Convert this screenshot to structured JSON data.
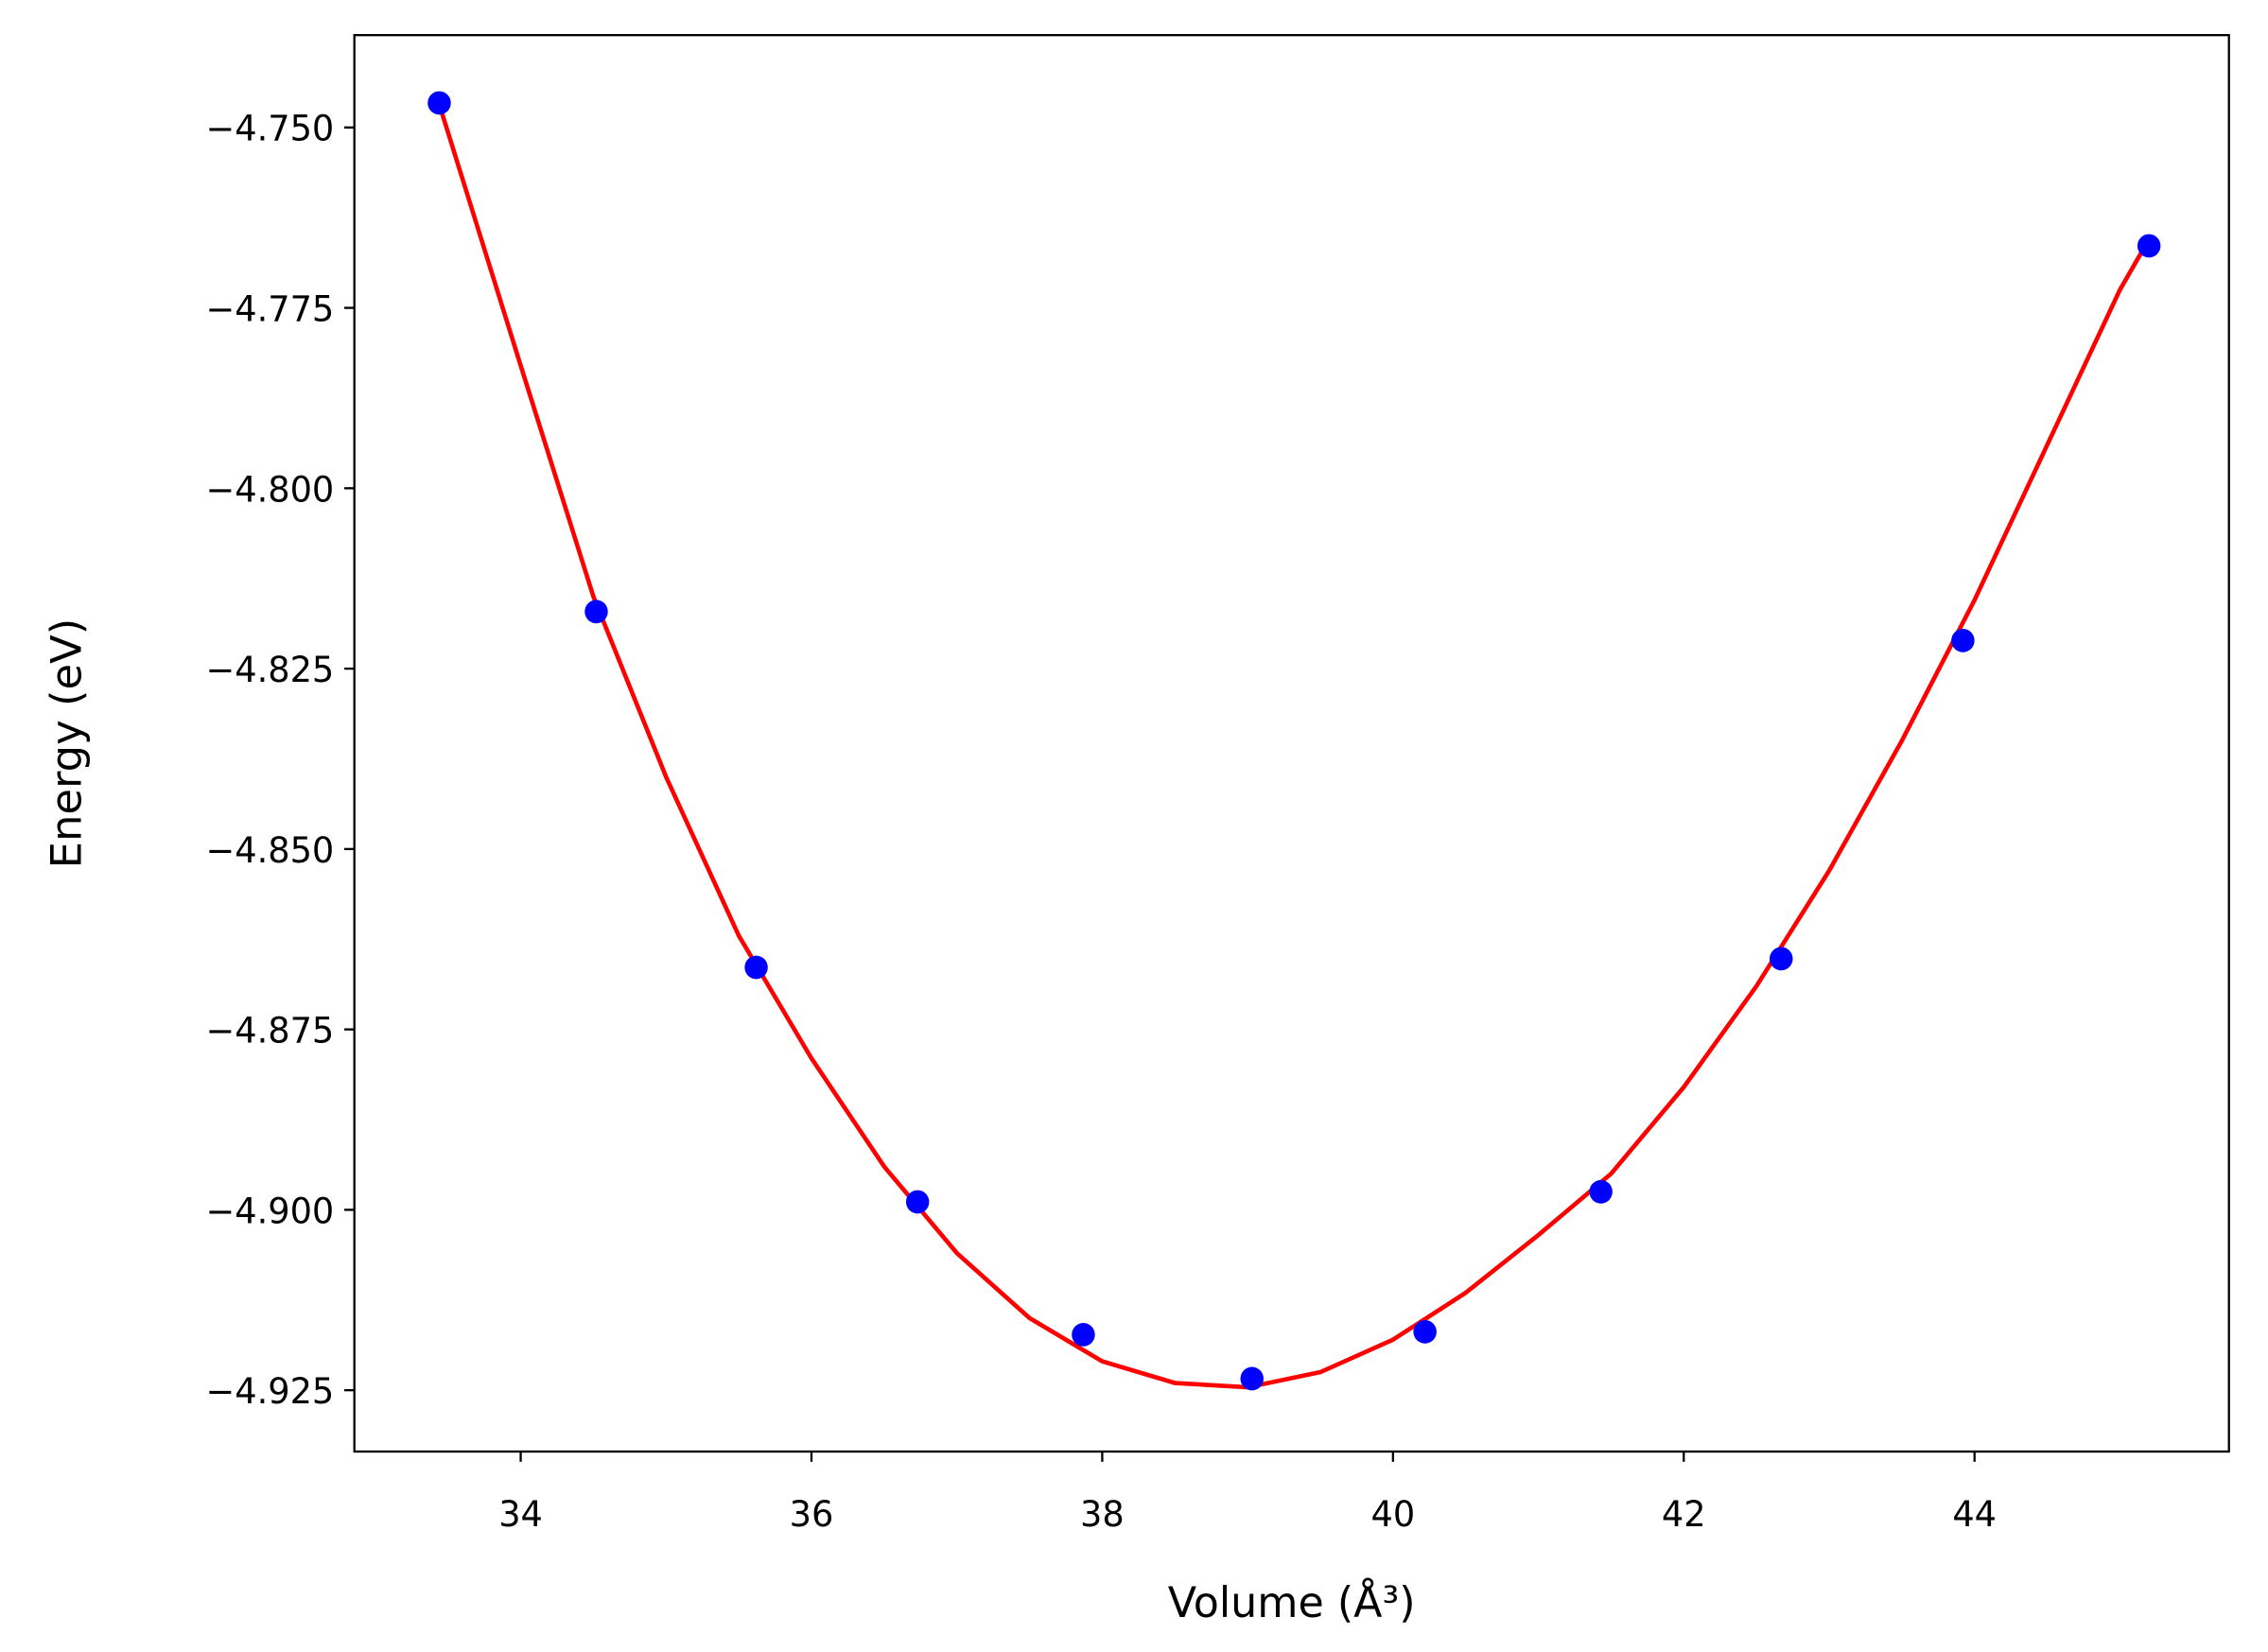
{
  "chart_data": {
    "type": "line",
    "x_label": "Volume (Å³)",
    "y_label": "Energy (eV)",
    "xlim": [
      32.856,
      45.75
    ],
    "ylim": [
      -4.9335,
      -4.7372
    ],
    "xticks": [
      34,
      36,
      38,
      40,
      42,
      44
    ],
    "yticks": [
      {
        "value": -4.75,
        "label": "−4.750"
      },
      {
        "value": -4.775,
        "label": "−4.775"
      },
      {
        "value": -4.8,
        "label": "−4.800"
      },
      {
        "value": -4.825,
        "label": "−4.825"
      },
      {
        "value": -4.85,
        "label": "−4.850"
      },
      {
        "value": -4.875,
        "label": "−4.875"
      },
      {
        "value": -4.9,
        "label": "−4.900"
      },
      {
        "value": -4.925,
        "label": "−4.925"
      }
    ],
    "series": [
      {
        "style": "line",
        "color": "#ff0000",
        "x": [
          33.44,
          34,
          34.5,
          35,
          35.5,
          36,
          36.5,
          37,
          37.5,
          38,
          38.5,
          39,
          39.5,
          40,
          40.5,
          41,
          41.5,
          42,
          42.5,
          43,
          43.5,
          44,
          44.5,
          45,
          45.2
        ],
        "values": [
          -4.7468,
          -4.783,
          -4.815,
          -4.84,
          -4.862,
          -4.879,
          -4.894,
          -4.906,
          -4.915,
          -4.921,
          -4.924,
          -4.9246,
          -4.9225,
          -4.918,
          -4.9115,
          -4.9035,
          -4.895,
          -4.883,
          -4.869,
          -4.853,
          -4.835,
          -4.8155,
          -4.794,
          -4.7725,
          -4.7655
        ]
      },
      {
        "style": "markers",
        "color": "#0000ff",
        "x": [
          33.44,
          34.52,
          35.62,
          36.73,
          37.87,
          39.03,
          40.22,
          41.43,
          42.67,
          43.92,
          45.2
        ],
        "values": [
          -4.7466,
          -4.8171,
          -4.8664,
          -4.8989,
          -4.9173,
          -4.9234,
          -4.9169,
          -4.8975,
          -4.8652,
          -4.8211,
          -4.7664
        ]
      }
    ]
  }
}
